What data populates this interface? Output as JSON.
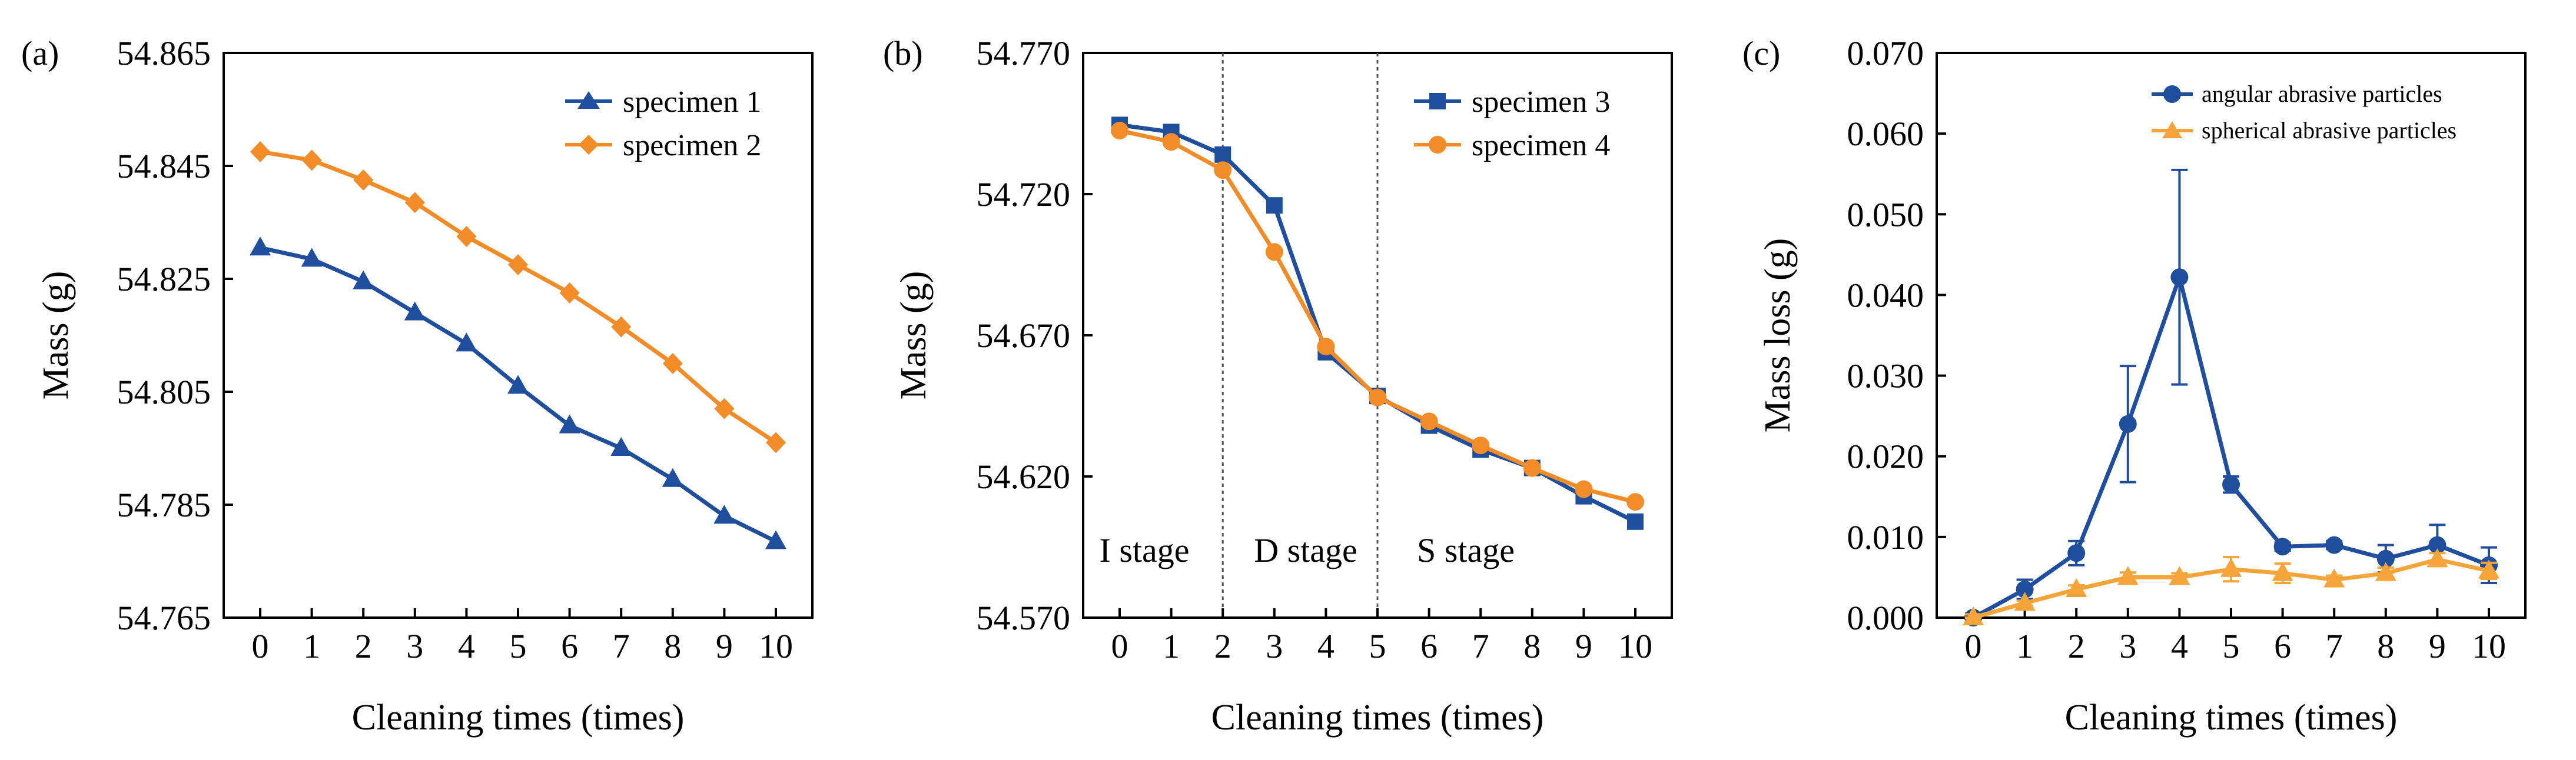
{
  "chart_data": [
    {
      "panel": "(a)",
      "type": "line",
      "xlabel": "Cleaning times (times)",
      "ylabel": "Mass (g)",
      "categories": [
        0,
        1,
        2,
        3,
        4,
        5,
        6,
        7,
        8,
        9,
        10
      ],
      "x_tick_labels": [
        "0",
        "1",
        "2",
        "3",
        "4",
        "5",
        "6",
        "7",
        "8",
        "9",
        "10"
      ],
      "ylim": [
        54.765,
        54.865
      ],
      "y_tick_values": [
        54.765,
        54.785,
        54.805,
        54.825,
        54.845,
        54.865
      ],
      "y_tick_labels": [
        "54.765",
        "54.785",
        "54.805",
        "54.825",
        "54.845",
        "54.865"
      ],
      "legend_position": "top-right",
      "series": [
        {
          "name": "specimen 1",
          "color": "#1f4e9c",
          "marker": "triangle",
          "values": [
            54.8305,
            54.8285,
            54.8245,
            54.819,
            54.8135,
            54.806,
            54.799,
            54.795,
            54.7895,
            54.783,
            54.7785
          ]
        },
        {
          "name": "specimen 2",
          "color": "#f28c28",
          "marker": "diamond",
          "values": [
            54.8475,
            54.846,
            54.8425,
            54.8385,
            54.8325,
            54.8275,
            54.8225,
            54.8165,
            54.81,
            54.802,
            54.796
          ]
        }
      ]
    },
    {
      "panel": "(b)",
      "type": "line",
      "xlabel": "Cleaning times (times)",
      "ylabel": "Mass (g)",
      "categories": [
        0,
        1,
        2,
        3,
        4,
        5,
        6,
        7,
        8,
        9,
        10
      ],
      "x_tick_labels": [
        "0",
        "1",
        "2",
        "3",
        "4",
        "5",
        "6",
        "7",
        "8",
        "9",
        "10"
      ],
      "ylim": [
        54.57,
        54.77
      ],
      "y_tick_values": [
        54.57,
        54.62,
        54.67,
        54.72,
        54.77
      ],
      "y_tick_labels": [
        "54.570",
        "54.620",
        "54.670",
        "54.720",
        "54.770"
      ],
      "legend_position": "top-right",
      "stage_boundaries": [
        2,
        5
      ],
      "stage_labels": [
        "I stage",
        "D stage",
        "S stage"
      ],
      "series": [
        {
          "name": "specimen 3",
          "color": "#1f4e9c",
          "marker": "square",
          "values": [
            54.7445,
            54.742,
            54.734,
            54.716,
            54.664,
            54.6485,
            54.638,
            54.6295,
            54.623,
            54.613,
            54.604
          ]
        },
        {
          "name": "specimen 4",
          "color": "#f28c28",
          "marker": "circle",
          "values": [
            54.7425,
            54.7385,
            54.7285,
            54.6995,
            54.666,
            54.648,
            54.6395,
            54.631,
            54.623,
            54.6155,
            54.611
          ]
        }
      ]
    },
    {
      "panel": "(c)",
      "type": "line",
      "xlabel": "Cleaning times (times)",
      "ylabel": "Mass loss (g)",
      "categories": [
        0,
        1,
        2,
        3,
        4,
        5,
        6,
        7,
        8,
        9,
        10
      ],
      "x_tick_labels": [
        "0",
        "1",
        "2",
        "3",
        "4",
        "5",
        "6",
        "7",
        "8",
        "9",
        "10"
      ],
      "ylim": [
        0,
        0.07
      ],
      "y_tick_values": [
        0,
        0.01,
        0.02,
        0.03,
        0.04,
        0.05,
        0.06,
        0.07
      ],
      "y_tick_labels": [
        "0.000",
        "0.010",
        "0.020",
        "0.030",
        "0.040",
        "0.050",
        "0.060",
        "0.070"
      ],
      "legend_position": "top-right",
      "series": [
        {
          "name": "angular abrasive particles",
          "color": "#1f4e9c",
          "marker": "circle",
          "values": [
            0.0,
            0.0035,
            0.008,
            0.024,
            0.0422,
            0.0165,
            0.0088,
            0.009,
            0.0073,
            0.009,
            0.0065
          ],
          "errors": [
            0.0005,
            0.0012,
            0.0015,
            0.0072,
            0.0133,
            0.001,
            0.0005,
            0.0005,
            0.0017,
            0.0025,
            0.0022
          ]
        },
        {
          "name": "spherical abrasive particles",
          "color": "#f5a43a",
          "marker": "triangle",
          "values": [
            0.0,
            0.0018,
            0.0035,
            0.005,
            0.005,
            0.006,
            0.0055,
            0.0047,
            0.0055,
            0.0072,
            0.0058
          ],
          "errors": [
            0.0004,
            0.0003,
            0.0005,
            0.0006,
            0.0005,
            0.0015,
            0.0012,
            0.0005,
            0.0007,
            0.0008,
            0.001
          ]
        }
      ]
    }
  ]
}
